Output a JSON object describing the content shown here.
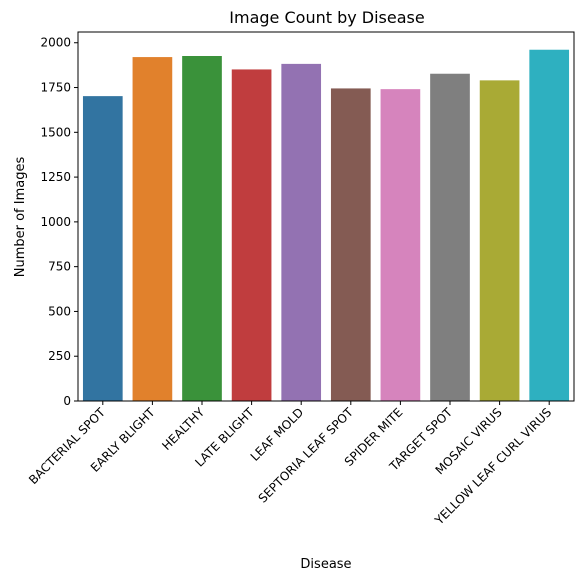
{
  "chart_data": {
    "type": "bar",
    "title": "Image Count by Disease",
    "xlabel": "Disease",
    "ylabel": "Number of Images",
    "ylim": [
      0,
      2000
    ],
    "yticks": [
      0,
      250,
      500,
      750,
      1000,
      1250,
      1500,
      1750,
      2000
    ],
    "grid": false,
    "categories": [
      "BACTERIAL SPOT",
      "EARLY BLIGHT",
      "HEALTHY",
      "LATE BLIGHT",
      "LEAF MOLD",
      "SEPTORIA LEAF SPOT",
      "SPIDER MITE",
      "TARGET SPOT",
      "MOSAIC VIRUS",
      "YELLOW LEAF CURL VIRUS"
    ],
    "values": [
      1702,
      1920,
      1926,
      1851,
      1882,
      1745,
      1741,
      1827,
      1790,
      1961
    ],
    "colors": [
      "#3274a1",
      "#e1812c",
      "#3a923a",
      "#c03d3e",
      "#9372b2",
      "#845b53",
      "#d684bd",
      "#7f7f7f",
      "#a9aa35",
      "#2eb0c0"
    ]
  }
}
